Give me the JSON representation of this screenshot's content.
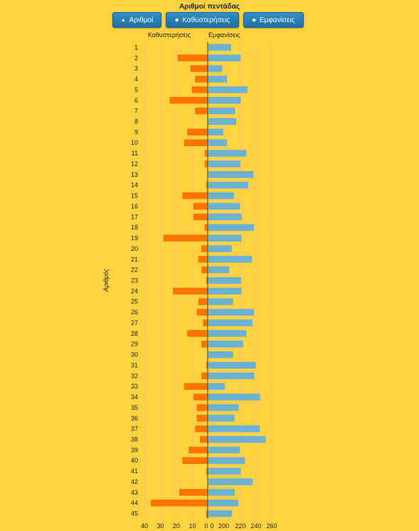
{
  "title": "Αριθμοί πεντάδας",
  "buttons": [
    {
      "label": "Αριθμοί",
      "icon": "triangle-up-icon"
    },
    {
      "label": "Καθυστερήσεις",
      "icon": "sort-icon"
    },
    {
      "label": "Εμφανίσεις",
      "icon": "sort-icon"
    }
  ],
  "colors": {
    "delays": "#FF7300",
    "appearances": "#6BB1D6",
    "background": "#FFD23F"
  },
  "chart_data": {
    "type": "bar",
    "ylabel": "Αριθμός",
    "left": {
      "name": "Καθυστερήσεις",
      "xlim": [
        0,
        40
      ],
      "ticks": [
        "40",
        "30",
        "20",
        "10",
        "0"
      ],
      "values": [
        0,
        19,
        11,
        8,
        10,
        24,
        8,
        0,
        13,
        15,
        2,
        2,
        0,
        1,
        16,
        9,
        9,
        2,
        28,
        4,
        6,
        4,
        1,
        22,
        6,
        7,
        3,
        13,
        4,
        0,
        1,
        4,
        15,
        9,
        7,
        7,
        8,
        5,
        12,
        16,
        1,
        0,
        18,
        36,
        1
      ]
    },
    "right": {
      "name": "Εμφανίσεις",
      "xlim": [
        0,
        270
      ],
      "ticks": [
        "0",
        "200",
        "220",
        "240",
        "260"
      ],
      "values": [
        95,
        136,
        58,
        78,
        164,
        136,
        112,
        117,
        62,
        78,
        160,
        134,
        190,
        168,
        108,
        133,
        140,
        192,
        139,
        98,
        184,
        88,
        138,
        139,
        104,
        192,
        186,
        160,
        146,
        104,
        200,
        193,
        70,
        218,
        127,
        110,
        216,
        241,
        132,
        154,
        136,
        187,
        111,
        126,
        99
      ]
    },
    "categories": [
      "1",
      "2",
      "3",
      "4",
      "5",
      "6",
      "7",
      "8",
      "9",
      "10",
      "11",
      "12",
      "13",
      "14",
      "15",
      "16",
      "17",
      "18",
      "19",
      "20",
      "21",
      "22",
      "23",
      "24",
      "25",
      "26",
      "27",
      "28",
      "29",
      "30",
      "31",
      "32",
      "33",
      "34",
      "35",
      "36",
      "37",
      "38",
      "39",
      "40",
      "41",
      "42",
      "43",
      "44",
      "45"
    ]
  }
}
